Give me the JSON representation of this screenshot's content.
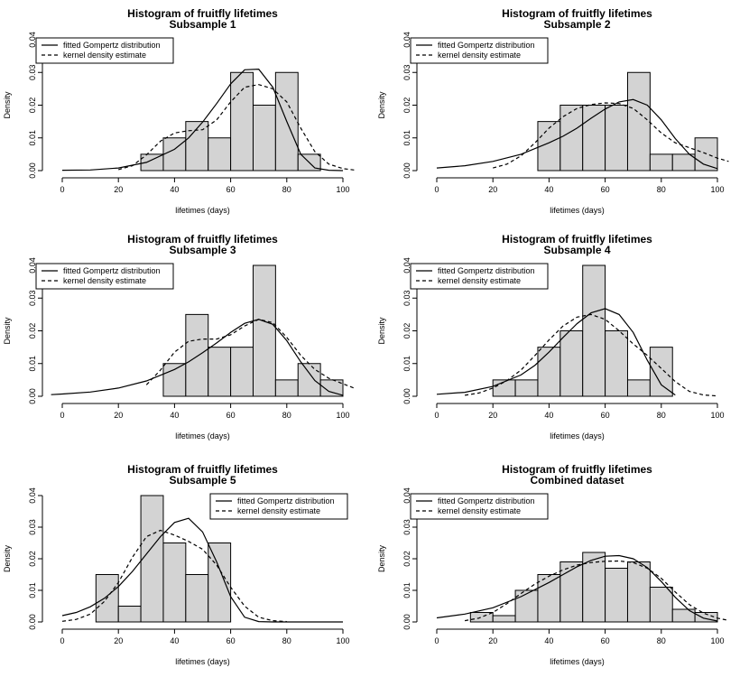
{
  "figure": {
    "background": "#ffffff",
    "bar_color": "#d3d3d3",
    "line_color": "#000000"
  },
  "chart_data": [
    {
      "type": "bar",
      "title": "Histogram of fruitfly lifetimes",
      "subtitle": "Subsample 1",
      "xlabel": "lifetimes (days)",
      "ylabel": "Density",
      "xlim": [
        0,
        100
      ],
      "ylim": [
        0,
        0.04
      ],
      "xticks": [
        "0",
        "20",
        "40",
        "60",
        "80",
        "100"
      ],
      "yticks": [
        "0.00",
        "0.01",
        "0.02",
        "0.03",
        "0.04"
      ],
      "bin_width": 8,
      "bins": [
        {
          "start": 28,
          "value": 0.005
        },
        {
          "start": 36,
          "value": 0.01
        },
        {
          "start": 44,
          "value": 0.015
        },
        {
          "start": 52,
          "value": 0.01
        },
        {
          "start": 60,
          "value": 0.03
        },
        {
          "start": 68,
          "value": 0.02
        },
        {
          "start": 76,
          "value": 0.03
        },
        {
          "start": 84,
          "value": 0.005
        }
      ],
      "legend": {
        "position": "top-left",
        "entries": [
          "fitted Gompertz distribution",
          "kernel density estimate"
        ]
      },
      "series": [
        {
          "name": "fitted Gompertz distribution",
          "style": "solid",
          "x": [
            0,
            10,
            20,
            30,
            40,
            45,
            50,
            55,
            60,
            65,
            70,
            75,
            80,
            85,
            90,
            95,
            100
          ],
          "y": [
            0.0001,
            0.0002,
            0.0008,
            0.0025,
            0.0065,
            0.01,
            0.0148,
            0.0205,
            0.0265,
            0.0308,
            0.031,
            0.0255,
            0.015,
            0.005,
            0.0008,
            0.0001,
            0.0
          ]
        },
        {
          "name": "kernel density estimate",
          "style": "dashed",
          "x": [
            20,
            25,
            30,
            35,
            40,
            45,
            50,
            55,
            60,
            65,
            70,
            75,
            80,
            85,
            90,
            95,
            100,
            104
          ],
          "y": [
            0.0003,
            0.0015,
            0.0048,
            0.009,
            0.0115,
            0.0122,
            0.0125,
            0.0155,
            0.021,
            0.0255,
            0.0263,
            0.025,
            0.021,
            0.013,
            0.0058,
            0.002,
            0.0006,
            0.0002
          ]
        }
      ]
    },
    {
      "type": "bar",
      "title": "Histogram of fruitfly lifetimes",
      "subtitle": "Subsample 2",
      "xlabel": "lifetimes (days)",
      "ylabel": "Density",
      "xlim": [
        0,
        100
      ],
      "ylim": [
        0,
        0.04
      ],
      "xticks": [
        "0",
        "20",
        "40",
        "60",
        "80",
        "100"
      ],
      "yticks": [
        "0.00",
        "0.01",
        "0.02",
        "0.03",
        "0.04"
      ],
      "bin_width": 8,
      "bins": [
        {
          "start": 36,
          "value": 0.015
        },
        {
          "start": 44,
          "value": 0.02
        },
        {
          "start": 52,
          "value": 0.02
        },
        {
          "start": 60,
          "value": 0.02
        },
        {
          "start": 68,
          "value": 0.03
        },
        {
          "start": 76,
          "value": 0.005
        },
        {
          "start": 84,
          "value": 0.005
        },
        {
          "start": 92,
          "value": 0.01
        }
      ],
      "legend": {
        "position": "top-left",
        "entries": [
          "fitted Gompertz distribution",
          "kernel density estimate"
        ]
      },
      "series": [
        {
          "name": "fitted Gompertz distribution",
          "style": "solid",
          "x": [
            0,
            10,
            20,
            30,
            40,
            45,
            50,
            55,
            60,
            65,
            70,
            75,
            80,
            85,
            90,
            95,
            100
          ],
          "y": [
            0.0008,
            0.0015,
            0.0028,
            0.005,
            0.0085,
            0.0105,
            0.013,
            0.016,
            0.0188,
            0.021,
            0.0217,
            0.02,
            0.0155,
            0.0098,
            0.005,
            0.002,
            0.0006
          ]
        },
        {
          "name": "kernel density estimate",
          "style": "dashed",
          "x": [
            20,
            25,
            30,
            35,
            40,
            45,
            50,
            55,
            60,
            65,
            70,
            75,
            80,
            85,
            90,
            95,
            100,
            104
          ],
          "y": [
            0.0008,
            0.002,
            0.0045,
            0.0085,
            0.013,
            0.0165,
            0.019,
            0.0202,
            0.0207,
            0.0205,
            0.019,
            0.0155,
            0.0115,
            0.0085,
            0.007,
            0.0055,
            0.0038,
            0.0028
          ]
        }
      ]
    },
    {
      "type": "bar",
      "title": "Histogram of fruitfly lifetimes",
      "subtitle": "Subsample 3",
      "xlabel": "lifetimes (days)",
      "ylabel": "Density",
      "xlim": [
        0,
        100
      ],
      "ylim": [
        0,
        0.04
      ],
      "xticks": [
        "0",
        "20",
        "40",
        "60",
        "80",
        "100"
      ],
      "yticks": [
        "0.00",
        "0.01",
        "0.02",
        "0.03",
        "0.04"
      ],
      "bin_width": 8,
      "bins": [
        {
          "start": 36,
          "value": 0.01
        },
        {
          "start": 44,
          "value": 0.025
        },
        {
          "start": 52,
          "value": 0.015
        },
        {
          "start": 60,
          "value": 0.015
        },
        {
          "start": 68,
          "value": 0.04
        },
        {
          "start": 76,
          "value": 0.005
        },
        {
          "start": 84,
          "value": 0.01
        },
        {
          "start": 92,
          "value": 0.005
        }
      ],
      "legend": {
        "position": "top-left",
        "entries": [
          "fitted Gompertz distribution",
          "kernel density estimate"
        ]
      },
      "series": [
        {
          "name": "fitted Gompertz distribution",
          "style": "solid",
          "x": [
            -4,
            0,
            10,
            20,
            30,
            40,
            45,
            50,
            55,
            60,
            65,
            70,
            75,
            80,
            85,
            90,
            95,
            100
          ],
          "y": [
            0.0005,
            0.0007,
            0.0013,
            0.0025,
            0.0047,
            0.0082,
            0.0105,
            0.0133,
            0.0163,
            0.0195,
            0.0223,
            0.0235,
            0.022,
            0.017,
            0.0105,
            0.0048,
            0.0015,
            0.0003
          ]
        },
        {
          "name": "kernel density estimate",
          "style": "dashed",
          "x": [
            30,
            35,
            40,
            45,
            50,
            55,
            60,
            65,
            70,
            75,
            80,
            85,
            90,
            95,
            100,
            104
          ],
          "y": [
            0.0035,
            0.008,
            0.0135,
            0.0168,
            0.0175,
            0.0175,
            0.0188,
            0.0215,
            0.0235,
            0.0225,
            0.018,
            0.0125,
            0.0082,
            0.0055,
            0.0038,
            0.0025
          ]
        }
      ]
    },
    {
      "type": "bar",
      "title": "Histogram of fruitfly lifetimes",
      "subtitle": "Subsample 4",
      "xlabel": "lifetimes (days)",
      "ylabel": "Density",
      "xlim": [
        0,
        100
      ],
      "ylim": [
        0,
        0.04
      ],
      "xticks": [
        "0",
        "20",
        "40",
        "60",
        "80",
        "100"
      ],
      "yticks": [
        "0.00",
        "0.01",
        "0.02",
        "0.03",
        "0.04"
      ],
      "bin_width": 8,
      "bins": [
        {
          "start": 20,
          "value": 0.005
        },
        {
          "start": 28,
          "value": 0.005
        },
        {
          "start": 36,
          "value": 0.015
        },
        {
          "start": 44,
          "value": 0.02
        },
        {
          "start": 52,
          "value": 0.04
        },
        {
          "start": 60,
          "value": 0.02
        },
        {
          "start": 68,
          "value": 0.005
        },
        {
          "start": 76,
          "value": 0.015
        }
      ],
      "legend": {
        "position": "top-left",
        "entries": [
          "fitted Gompertz distribution",
          "kernel density estimate"
        ]
      },
      "series": [
        {
          "name": "fitted Gompertz distribution",
          "style": "solid",
          "x": [
            0,
            10,
            20,
            30,
            35,
            40,
            45,
            50,
            55,
            60,
            65,
            70,
            75,
            80,
            85
          ],
          "y": [
            0.0006,
            0.0012,
            0.003,
            0.0065,
            0.0095,
            0.0135,
            0.018,
            0.0222,
            0.0255,
            0.0268,
            0.025,
            0.0195,
            0.011,
            0.0035,
            0.0004
          ]
        },
        {
          "name": "kernel density estimate",
          "style": "dashed",
          "x": [
            10,
            15,
            20,
            25,
            30,
            35,
            40,
            45,
            50,
            55,
            60,
            65,
            70,
            75,
            80,
            85,
            90,
            95,
            100
          ],
          "y": [
            0.0003,
            0.001,
            0.0025,
            0.0048,
            0.008,
            0.0125,
            0.0172,
            0.0215,
            0.0242,
            0.025,
            0.0235,
            0.02,
            0.016,
            0.0125,
            0.0085,
            0.0045,
            0.0015,
            0.0004,
            0.0001
          ]
        }
      ]
    },
    {
      "type": "bar",
      "title": "Histogram of fruitfly lifetimes",
      "subtitle": "Subsample 5",
      "xlabel": "lifetimes (days)",
      "ylabel": "Density",
      "xlim": [
        0,
        100
      ],
      "ylim": [
        0,
        0.04
      ],
      "xticks": [
        "0",
        "20",
        "40",
        "60",
        "80",
        "100"
      ],
      "yticks": [
        "0.00",
        "0.01",
        "0.02",
        "0.03",
        "0.04"
      ],
      "bin_width": 8,
      "bins": [
        {
          "start": 12,
          "value": 0.015
        },
        {
          "start": 20,
          "value": 0.005
        },
        {
          "start": 28,
          "value": 0.04
        },
        {
          "start": 36,
          "value": 0.025
        },
        {
          "start": 44,
          "value": 0.015
        },
        {
          "start": 52,
          "value": 0.025
        }
      ],
      "legend": {
        "position": "top-right",
        "entries": [
          "fitted Gompertz distribution",
          "kernel density estimate"
        ]
      },
      "series": [
        {
          "name": "fitted Gompertz distribution",
          "style": "solid",
          "x": [
            0,
            5,
            10,
            15,
            20,
            25,
            30,
            35,
            40,
            45,
            50,
            55,
            60,
            65,
            70,
            75,
            80,
            100
          ],
          "y": [
            0.002,
            0.003,
            0.0048,
            0.0075,
            0.0112,
            0.016,
            0.0215,
            0.027,
            0.0315,
            0.0328,
            0.0285,
            0.019,
            0.008,
            0.0015,
            0.0001,
            0.0,
            0.0,
            0.0
          ]
        },
        {
          "name": "kernel density estimate",
          "style": "dashed",
          "x": [
            0,
            5,
            10,
            15,
            20,
            25,
            30,
            35,
            40,
            45,
            50,
            55,
            60,
            65,
            70,
            75,
            80
          ],
          "y": [
            0.0002,
            0.0008,
            0.0025,
            0.0065,
            0.0125,
            0.0205,
            0.027,
            0.029,
            0.0275,
            0.0255,
            0.023,
            0.018,
            0.011,
            0.005,
            0.0015,
            0.0004,
            0.0001
          ]
        }
      ]
    },
    {
      "type": "bar",
      "title": "Histogram of fruitfly lifetimes",
      "subtitle": "Combined dataset",
      "xlabel": "lifetimes (days)",
      "ylabel": "Density",
      "xlim": [
        0,
        100
      ],
      "ylim": [
        0,
        0.04
      ],
      "xticks": [
        "0",
        "20",
        "40",
        "60",
        "80",
        "100"
      ],
      "yticks": [
        "0.00",
        "0.01",
        "0.02",
        "0.03",
        "0.04"
      ],
      "bin_width": 8,
      "bins": [
        {
          "start": 12,
          "value": 0.003
        },
        {
          "start": 20,
          "value": 0.002
        },
        {
          "start": 28,
          "value": 0.01
        },
        {
          "start": 36,
          "value": 0.015
        },
        {
          "start": 44,
          "value": 0.019
        },
        {
          "start": 52,
          "value": 0.022
        },
        {
          "start": 60,
          "value": 0.017
        },
        {
          "start": 68,
          "value": 0.019
        },
        {
          "start": 76,
          "value": 0.011
        },
        {
          "start": 84,
          "value": 0.004
        },
        {
          "start": 92,
          "value": 0.003
        }
      ],
      "legend": {
        "position": "top-left",
        "entries": [
          "fitted Gompertz distribution",
          "kernel density estimate"
        ]
      },
      "series": [
        {
          "name": "fitted Gompertz distribution",
          "style": "solid",
          "x": [
            0,
            10,
            20,
            30,
            40,
            45,
            50,
            55,
            60,
            65,
            70,
            75,
            80,
            85,
            90,
            95,
            100
          ],
          "y": [
            0.0013,
            0.0025,
            0.0045,
            0.008,
            0.0125,
            0.015,
            0.0175,
            0.0195,
            0.0208,
            0.021,
            0.02,
            0.0172,
            0.0128,
            0.0078,
            0.0036,
            0.0012,
            0.0003
          ]
        },
        {
          "name": "kernel density estimate",
          "style": "dashed",
          "x": [
            10,
            15,
            20,
            25,
            30,
            35,
            40,
            45,
            50,
            55,
            60,
            65,
            70,
            75,
            80,
            85,
            90,
            95,
            100,
            104
          ],
          "y": [
            0.0004,
            0.0012,
            0.003,
            0.0058,
            0.009,
            0.012,
            0.0145,
            0.0165,
            0.018,
            0.0188,
            0.0192,
            0.0193,
            0.0188,
            0.017,
            0.0138,
            0.0095,
            0.0055,
            0.0028,
            0.0012,
            0.0005
          ]
        }
      ]
    }
  ]
}
